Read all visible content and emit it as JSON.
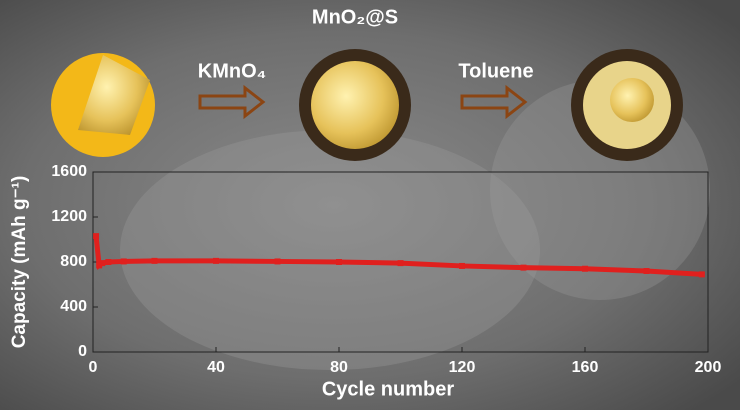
{
  "chart_data": {
    "type": "line",
    "annotations": [
      "MnO₂@S",
      "KMnO₄",
      "Toluene"
    ],
    "xlabel": "Cycle number",
    "ylabel": "Capacity (mAh g⁻¹)",
    "x": [
      1,
      2,
      3,
      5,
      10,
      20,
      40,
      60,
      80,
      100,
      120,
      140,
      160,
      180,
      198
    ],
    "series": [
      {
        "color": "#e0201e",
        "values": [
          1030,
          770,
          790,
          800,
          805,
          810,
          810,
          805,
          800,
          790,
          765,
          750,
          740,
          720,
          690
        ]
      }
    ],
    "xlim": [
      0,
      200
    ],
    "xticks": [
      0,
      40,
      80,
      120,
      160,
      200
    ],
    "ylim": [
      0,
      1600
    ],
    "yticks": [
      0,
      400,
      800,
      1200,
      1600
    ]
  }
}
